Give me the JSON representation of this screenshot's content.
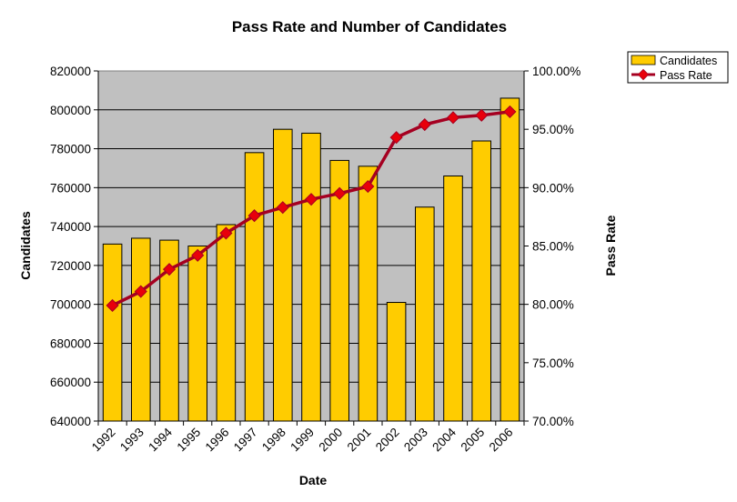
{
  "chart_data": {
    "type": "bar",
    "title": "Pass Rate and Number of Candidates",
    "xlabel": "Date",
    "ylabel": "Candidates",
    "y2label": "Pass Rate",
    "categories": [
      "1992",
      "1993",
      "1994",
      "1995",
      "1996",
      "1997",
      "1998",
      "1999",
      "2000",
      "2001",
      "2002",
      "2003",
      "2004",
      "2005",
      "2006"
    ],
    "ylim": [
      640000,
      820000
    ],
    "y_ticks": [
      "640000",
      "660000",
      "680000",
      "700000",
      "720000",
      "740000",
      "760000",
      "780000",
      "800000",
      "820000"
    ],
    "y2lim": [
      0.7,
      1.0
    ],
    "y2_ticks": [
      "70.00%",
      "75.00%",
      "80.00%",
      "85.00%",
      "90.00%",
      "95.00%",
      "100.00%"
    ],
    "grid": true,
    "legend_position": "top-right",
    "series": [
      {
        "name": "Candidates",
        "type": "bar",
        "axis": "left",
        "color": "#FFCC00",
        "values": [
          731000,
          734000,
          733000,
          730000,
          741000,
          778000,
          790000,
          788000,
          774000,
          771000,
          701000,
          750000,
          766000,
          784000,
          806000
        ]
      },
      {
        "name": "Pass Rate",
        "type": "line",
        "axis": "right",
        "color": "#A50021",
        "values": [
          0.799,
          0.811,
          0.83,
          0.842,
          0.861,
          0.876,
          0.883,
          0.89,
          0.895,
          0.901,
          0.943,
          0.954,
          0.96,
          0.962,
          0.965
        ]
      }
    ]
  }
}
